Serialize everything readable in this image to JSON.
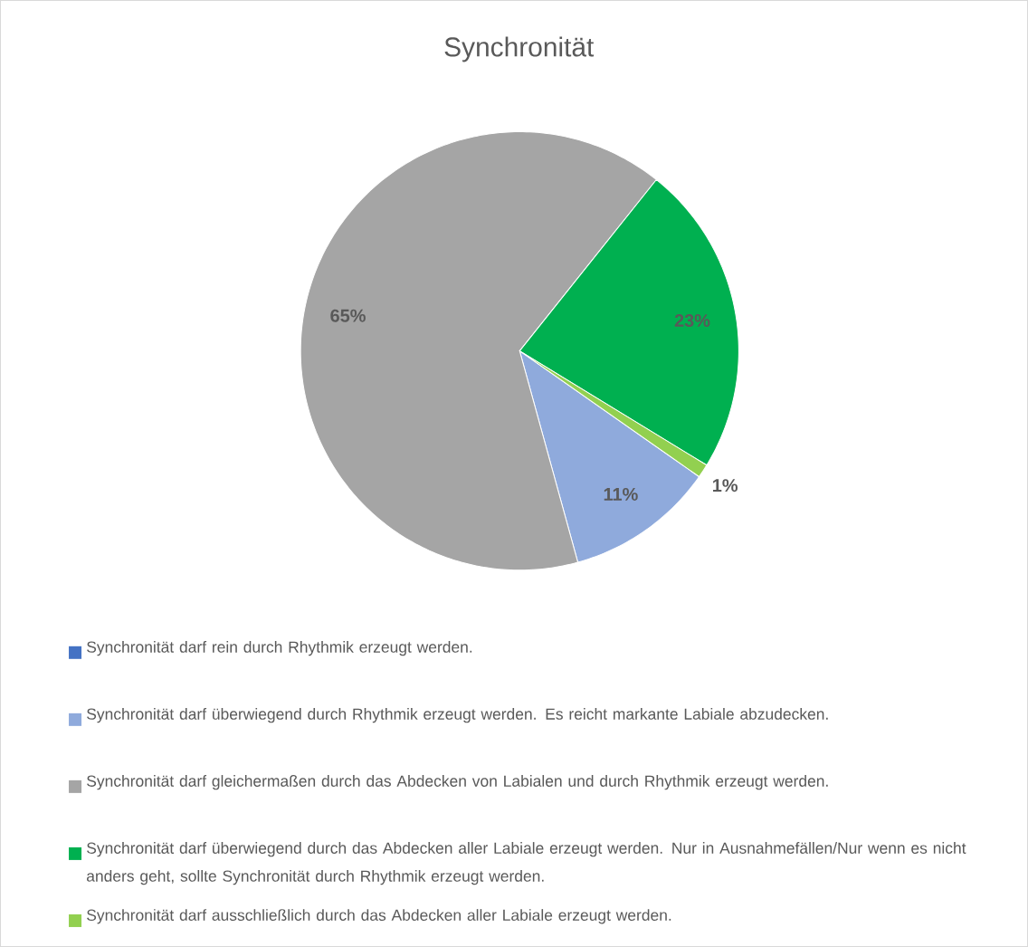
{
  "chart_data": {
    "type": "pie",
    "title": "Synchronität",
    "categories": [
      "Synchronität darf rein durch Rhythmik erzeugt werden.",
      "Synchronität darf überwiegend durch Rhythmik erzeugt werden. Es reicht markante Labiale abzudecken.",
      "Synchronität darf gleichermaßen durch das Abdecken von Labialen und durch Rhythmik erzeugt werden.",
      "Synchronität darf überwiegend durch das Abdecken aller Labiale erzeugt werden. Nur in Ausnahmefällen/Nur wenn es nicht anders geht, sollte Synchronität durch Rhythmik erzeugt werden.",
      "Synchronität darf ausschließlich durch das Abdecken aller Labiale erzeugt werden."
    ],
    "values": [
      0,
      11,
      65,
      23,
      1
    ],
    "value_labels": [
      null,
      "11%",
      "65%",
      "23%",
      "1%"
    ],
    "colors": [
      "#4472c4",
      "#8faadc",
      "#a5a5a5",
      "#00b050",
      "#92d050"
    ],
    "legend": "bottom"
  }
}
